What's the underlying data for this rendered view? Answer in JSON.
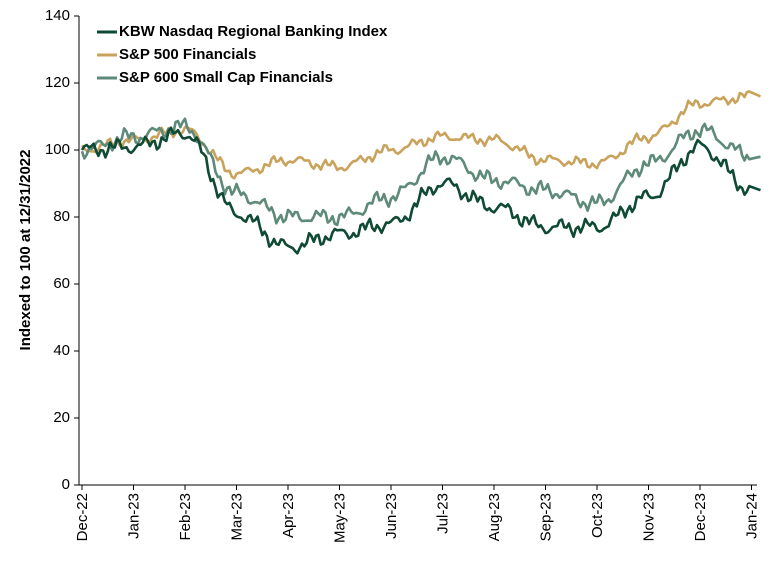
{
  "chart_data": {
    "type": "line",
    "title": "",
    "xlabel": "",
    "ylabel": "Indexed to 100 at 12/31/2022",
    "ylim": [
      0,
      140
    ],
    "yticks": [
      0,
      20,
      40,
      60,
      80,
      100,
      120,
      140
    ],
    "x_tick_labels": [
      "Dec-22",
      "Jan-23",
      "Feb-23",
      "Mar-23",
      "Apr-23",
      "May-23",
      "Jun-23",
      "Jul-23",
      "Aug-23",
      "Sep-23",
      "Oct-23",
      "Nov-23",
      "Dec-23",
      "Jan-24"
    ],
    "x": [
      "Dec-22",
      "Jan-23",
      "Feb-23",
      "Mar-23",
      "Apr-23",
      "May-23",
      "Jun-23",
      "Jul-23",
      "Aug-23",
      "Sep-23",
      "Oct-23",
      "Nov-23",
      "Dec-23",
      "Jan-24"
    ],
    "legend_position": "top-left",
    "grid": false,
    "series": [
      {
        "name": "KBW Nasdaq Regional Banking Index",
        "color": "#0f4a34",
        "values": [
          100,
          101,
          105,
          81,
          71,
          75,
          78,
          90,
          83,
          77,
          77,
          86,
          101,
          88
        ]
      },
      {
        "name": "S&P 500 Financials",
        "color": "#c9a35c",
        "values": [
          100,
          103,
          106,
          93,
          97,
          95,
          100,
          104,
          103,
          97,
          96,
          104,
          114,
          116
        ]
      },
      {
        "name": "S&P 600 Small Cap Financials",
        "color": "#5e8a79",
        "values": [
          100,
          104,
          107,
          87,
          80,
          80,
          86,
          98,
          91,
          88,
          84,
          96,
          106,
          98
        ]
      }
    ]
  }
}
